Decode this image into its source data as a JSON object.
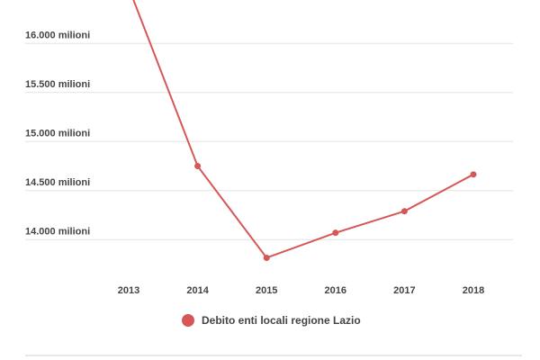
{
  "chart_data": {
    "type": "line",
    "title": "",
    "xlabel": "",
    "ylabel": "",
    "categories": [
      "2013",
      "2014",
      "2015",
      "2016",
      "2017",
      "2018"
    ],
    "series": [
      {
        "name": "Debito enti locali regione Lazio",
        "values": [
          16570,
          14750,
          13815,
          14070,
          14290,
          14665
        ],
        "color": "#d65757"
      }
    ],
    "yticks": [
      14000,
      14500,
      15000,
      15500,
      16000
    ],
    "ytick_labels": [
      "14.000 milioni",
      "14.500 milioni",
      "15.000 milioni",
      "15.500 milioni",
      "16.000 milioni"
    ],
    "grid": true,
    "legend": "bottom-center"
  }
}
